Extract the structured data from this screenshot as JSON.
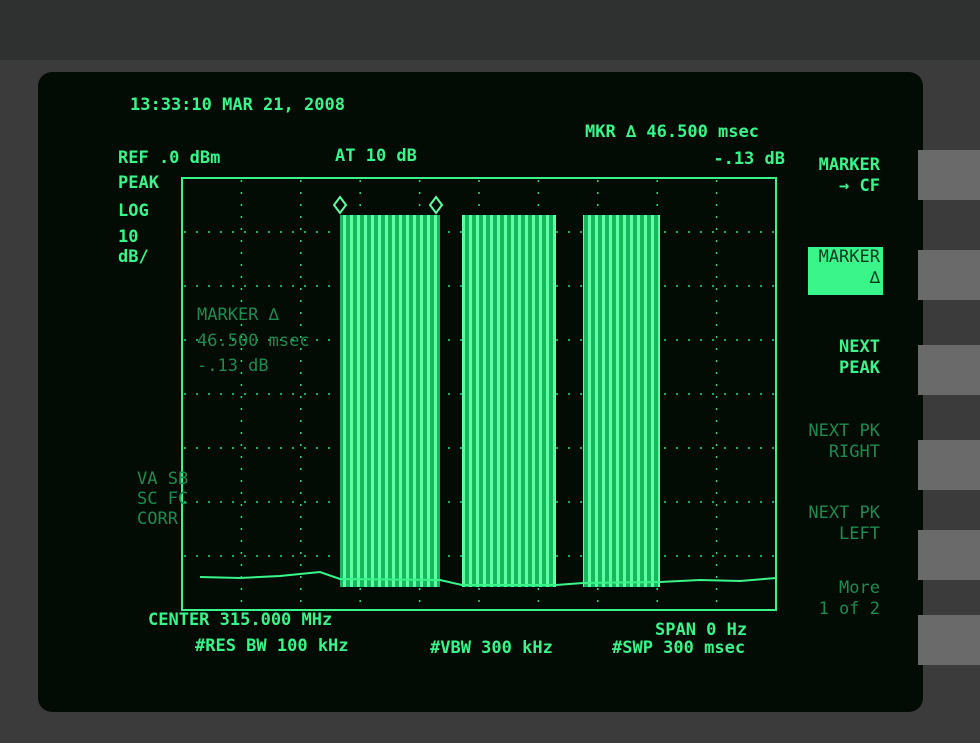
{
  "header": {
    "timestamp": "13:33:10 MAR 21, 2008",
    "reference": "REF .0 dBm",
    "attenuation": "AT 10 dB",
    "marker_readout": [
      "MKR ∆ 46.500 msec",
      "-.13 dB"
    ]
  },
  "left_panel": {
    "scale": [
      "PEAK",
      "LOG",
      "10",
      "dB/"
    ],
    "status": [
      "VA SB",
      "SC FC",
      "CORR"
    ]
  },
  "marker_annotation": [
    "MARKER ∆",
    "46.500 msec",
    "-.13 dB"
  ],
  "softkeys": [
    {
      "lines": [
        "MARKER",
        "→ CF"
      ]
    },
    {
      "lines": [
        "MARKER",
        "∆"
      ]
    },
    {
      "lines": [
        "NEXT",
        "PEAK"
      ]
    },
    {
      "lines": [
        "NEXT PK",
        "RIGHT"
      ]
    },
    {
      "lines": [
        "NEXT PK",
        "LEFT"
      ]
    },
    {
      "lines": [
        "More",
        "1 of 2"
      ]
    }
  ],
  "footer": {
    "center": "CENTER 315.000 MHz",
    "res_bw": "#RES BW 100 kHz",
    "vbw": "#VBW 300 kHz",
    "span": "SPAN 0 Hz",
    "sweep": "#SWP 300 msec"
  }
}
